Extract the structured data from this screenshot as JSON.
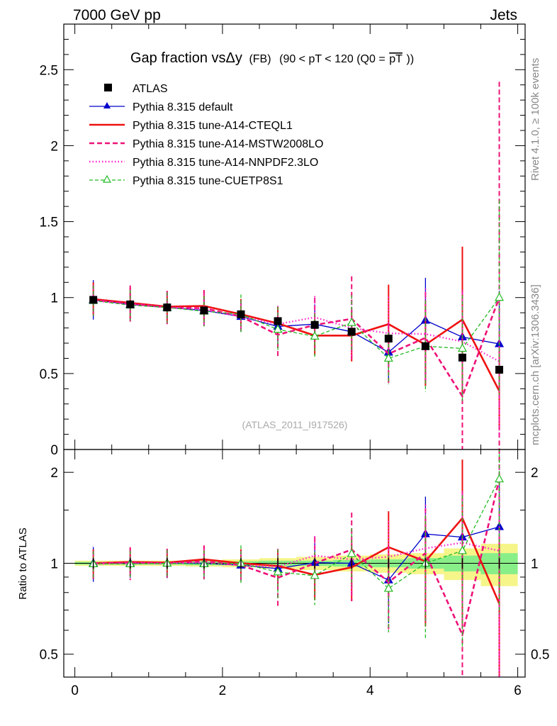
{
  "header": {
    "left": "7000 GeV pp",
    "right": "Jets"
  },
  "side": {
    "rivet": "Rivet 4.1.0, ≥ 100k events",
    "mcplots": "mcplots.cern.ch [arXiv:1306.3436]"
  },
  "title": {
    "main": "Gap fraction vsΔy",
    "fb": "(FB)",
    "range": "(90 < pT < 120 (Q0 =",
    "pt": "pT",
    "close": "))"
  },
  "analysis_id": "(ATLAS_2011_I917526)",
  "ratio_ylabel": "Ratio to ATLAS",
  "colors": {
    "atlas": "#000000",
    "default": "#0000cc",
    "cteql1": "#ee1111",
    "mstw": "#ee1177",
    "nnpdf": "#ff22cc",
    "cuetp8s1": "#22bb22",
    "band_inner": "#88ee88",
    "band_outer": "#f5f58a"
  },
  "chart_data": [
    {
      "type": "line",
      "panel": "main",
      "title": "Gap fraction vs Δy (FB) (90 < pT < 120 (Q0 = pT))",
      "xlim": [
        -0.15,
        6.1
      ],
      "ylim": [
        0,
        2.8
      ],
      "yticks": [
        0,
        0.5,
        1,
        1.5,
        2,
        2.5
      ],
      "ytick_labels": [
        "0",
        "0.5",
        "1",
        "1.5",
        "2",
        "2.5"
      ],
      "x": [
        0.25,
        0.75,
        1.25,
        1.75,
        2.25,
        2.75,
        3.25,
        3.75,
        4.25,
        4.75,
        5.25,
        5.75
      ],
      "series": [
        {
          "name": "ATLAS",
          "key": "atlas",
          "style": "data",
          "values": [
            0.985,
            0.955,
            0.935,
            0.915,
            0.89,
            0.845,
            0.82,
            0.775,
            0.73,
            0.68,
            0.605,
            0.525
          ]
        },
        {
          "name": "Pythia 8.315 default",
          "key": "default",
          "style": "solid-thin",
          "marker": "triangle",
          "values": [
            0.985,
            0.955,
            0.935,
            0.915,
            0.875,
            0.81,
            0.825,
            0.775,
            0.64,
            0.85,
            0.74,
            0.695
          ],
          "err": [
            0.13,
            0.1,
            0.1,
            0.1,
            0.1,
            0.12,
            0.13,
            0.15,
            0.18,
            0.28,
            0.35,
            0.35
          ]
        },
        {
          "name": "Pythia 8.315 tune-A14-CTEQL1",
          "key": "cteql1",
          "style": "solid-thick",
          "values": [
            0.99,
            0.965,
            0.94,
            0.945,
            0.89,
            0.83,
            0.75,
            0.75,
            0.825,
            0.69,
            0.855,
            0.385
          ],
          "err": [
            0.11,
            0.1,
            0.1,
            0.1,
            0.1,
            0.11,
            0.13,
            0.17,
            0.26,
            0.27,
            0.48,
            0.26
          ]
        },
        {
          "name": "Pythia 8.315 tune-A14-MSTW2008LO",
          "key": "mstw",
          "style": "dashed",
          "values": [
            0.985,
            0.96,
            0.935,
            0.93,
            0.875,
            0.755,
            0.82,
            0.86,
            0.63,
            0.735,
            0.35,
            1.0
          ],
          "err": [
            0.1,
            0.12,
            0.11,
            0.12,
            0.1,
            0.15,
            0.18,
            0.28,
            0.2,
            0.3,
            0.7,
            1.42
          ]
        },
        {
          "name": "Pythia 8.315 tune-A14-NNPDF2.3LO",
          "key": "nnpdf",
          "style": "dotted",
          "values": [
            0.98,
            0.955,
            0.935,
            0.92,
            0.875,
            0.825,
            0.87,
            0.8,
            0.765,
            0.76,
            0.71,
            0.58
          ],
          "err": [
            0.1,
            0.1,
            0.1,
            0.1,
            0.1,
            0.12,
            0.14,
            0.2,
            0.24,
            0.3,
            0.32,
            0.5
          ]
        },
        {
          "name": "Pythia 8.315 tune-CUETP8S1",
          "key": "cuetp8s1",
          "style": "dashed-thin",
          "marker": "triangle-open",
          "values": [
            0.98,
            0.95,
            0.935,
            0.91,
            0.89,
            0.79,
            0.745,
            0.835,
            0.6,
            0.68,
            0.665,
            1.0
          ],
          "err": [
            0.1,
            0.1,
            0.1,
            0.1,
            0.13,
            0.15,
            0.15,
            0.18,
            0.17,
            0.3,
            0.35,
            0.64
          ]
        }
      ]
    },
    {
      "type": "line",
      "panel": "ratio",
      "ylabel": "Ratio to ATLAS",
      "ylim": [
        0.42,
        2.38
      ],
      "yticks": [
        0.5,
        1,
        2
      ],
      "ytick_labels": [
        "0.5",
        "1",
        "2"
      ],
      "xticks": [
        0,
        2,
        4,
        6
      ],
      "xtick_labels": [
        "0",
        "2",
        "4",
        "6"
      ],
      "band_edges": [
        0.0,
        0.5,
        1.0,
        1.5,
        2.0,
        2.5,
        3.0,
        3.5,
        4.0,
        4.5,
        5.0,
        5.5,
        6.0
      ],
      "band_inner": [
        0.01,
        0.01,
        0.01,
        0.015,
        0.015,
        0.02,
        0.02,
        0.025,
        0.03,
        0.04,
        0.06,
        0.08
      ],
      "band_outer": [
        0.02,
        0.02,
        0.02,
        0.025,
        0.03,
        0.04,
        0.05,
        0.06,
        0.07,
        0.08,
        0.12,
        0.16
      ],
      "x": [
        0.25,
        0.75,
        1.25,
        1.75,
        2.25,
        2.75,
        3.25,
        3.75,
        4.25,
        4.75,
        5.25,
        5.75
      ],
      "series": [
        {
          "name": "Pythia 8.315 default",
          "key": "default",
          "values": [
            1.0,
            1.0,
            1.0,
            1.0,
            0.985,
            0.96,
            1.005,
            1.0,
            0.88,
            1.25,
            1.22,
            1.32
          ]
        },
        {
          "name": "Pythia 8.315 tune-A14-CTEQL1",
          "key": "cteql1",
          "values": [
            1.0,
            1.01,
            1.005,
            1.03,
            1.0,
            0.98,
            0.915,
            0.97,
            1.13,
            1.015,
            1.41,
            0.735
          ]
        },
        {
          "name": "Pythia 8.315 tune-A14-MSTW2008LO",
          "key": "mstw",
          "values": [
            1.0,
            1.005,
            1.0,
            1.015,
            0.985,
            0.895,
            1.0,
            1.11,
            0.865,
            1.08,
            0.58,
            1.9
          ]
        },
        {
          "name": "Pythia 8.315 tune-A14-NNPDF2.3LO",
          "key": "nnpdf",
          "values": [
            0.995,
            1.0,
            1.0,
            1.005,
            0.985,
            0.975,
            1.06,
            1.03,
            1.05,
            1.12,
            1.17,
            1.1
          ]
        },
        {
          "name": "Pythia 8.315 tune-CUETP8S1",
          "key": "cuetp8s1",
          "values": [
            0.995,
            0.995,
            1.0,
            0.995,
            1.0,
            0.935,
            0.91,
            1.075,
            0.825,
            1.0,
            1.1,
            1.9
          ]
        }
      ]
    }
  ]
}
